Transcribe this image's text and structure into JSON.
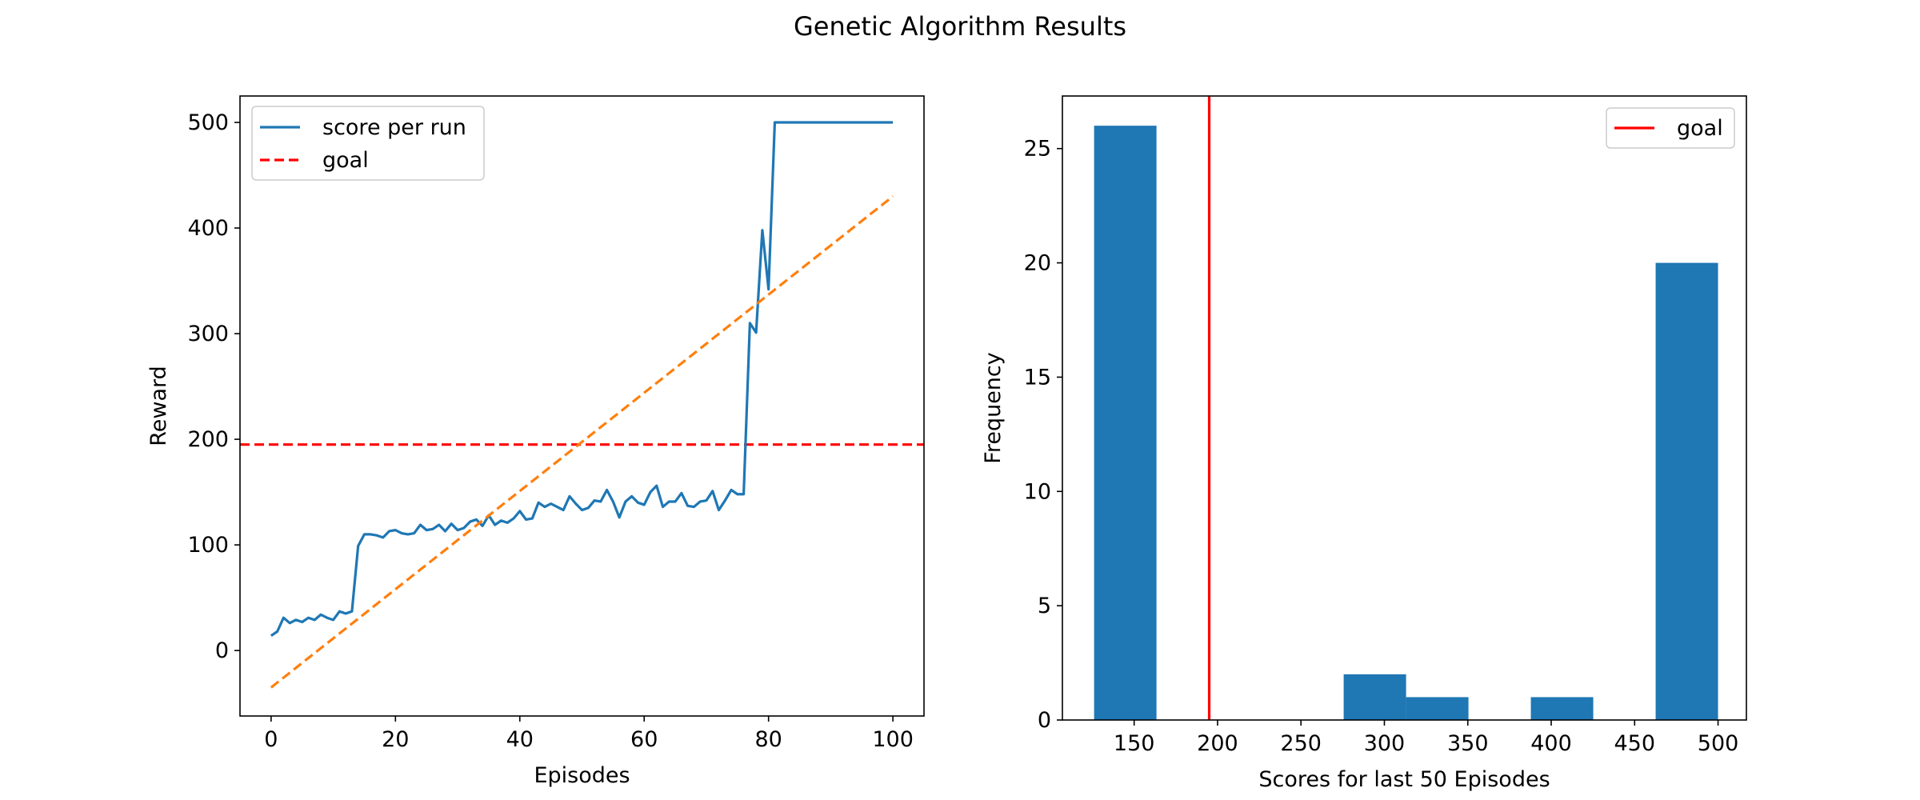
{
  "figure": {
    "title": "Genetic Algorithm Results"
  },
  "colors": {
    "score": "#1f77b4",
    "goal": "#d62728",
    "goal_line": "#ff0000",
    "trend": "#ff7f0e",
    "bar": "#1f77b4"
  },
  "chart_data": [
    {
      "type": "line",
      "xlabel": "Episodes",
      "ylabel": "Reward",
      "xlim": [
        -5,
        105
      ],
      "ylim": [
        -62,
        525
      ],
      "xticks": [
        0,
        20,
        40,
        60,
        80,
        100
      ],
      "yticks": [
        0,
        100,
        200,
        300,
        400,
        500
      ],
      "grid": false,
      "legend_position": "upper-left",
      "legend": [
        "score per run",
        "goal"
      ],
      "series": [
        {
          "name": "score per run",
          "style": "solid",
          "x": [
            0,
            1,
            2,
            3,
            4,
            5,
            6,
            7,
            8,
            9,
            10,
            11,
            12,
            13,
            14,
            15,
            16,
            17,
            18,
            19,
            20,
            21,
            22,
            23,
            24,
            25,
            26,
            27,
            28,
            29,
            30,
            31,
            32,
            33,
            34,
            35,
            36,
            37,
            38,
            39,
            40,
            41,
            42,
            43,
            44,
            45,
            46,
            47,
            48,
            49,
            50,
            51,
            52,
            53,
            54,
            55,
            56,
            57,
            58,
            59,
            60,
            61,
            62,
            63,
            64,
            65,
            66,
            67,
            68,
            69,
            70,
            71,
            72,
            73,
            74,
            75,
            76,
            77,
            78,
            79,
            80,
            81,
            82,
            83,
            84,
            85,
            86,
            87,
            88,
            89,
            90,
            91,
            92,
            93,
            94,
            95,
            96,
            97,
            98,
            99,
            100
          ],
          "y": [
            14,
            18,
            31,
            26,
            29,
            27,
            31,
            29,
            34,
            31,
            29,
            37,
            35,
            37,
            99,
            110,
            110,
            109,
            107,
            113,
            114,
            111,
            110,
            111,
            119,
            114,
            115,
            119,
            113,
            120,
            114,
            116,
            122,
            124,
            118,
            128,
            119,
            123,
            121,
            125,
            132,
            124,
            125,
            140,
            136,
            139,
            136,
            133,
            146,
            139,
            133,
            135,
            142,
            141,
            152,
            141,
            126,
            141,
            146,
            140,
            138,
            150,
            156,
            136,
            141,
            141,
            149,
            137,
            136,
            141,
            142,
            151,
            133,
            142,
            152,
            148,
            148,
            310,
            301,
            398,
            342,
            500,
            500,
            500,
            500,
            500,
            500,
            500,
            500,
            500,
            500,
            500,
            500,
            500,
            500,
            500,
            500,
            500,
            500,
            500,
            500
          ]
        },
        {
          "name": "",
          "style": "dashed",
          "x": [
            0,
            100
          ],
          "y": [
            -35,
            430
          ]
        }
      ],
      "hlines": [
        {
          "name": "goal",
          "y": 195,
          "style": "dashed"
        }
      ]
    },
    {
      "type": "bar",
      "xlabel": "Scores for last 50 Episodes",
      "ylabel": "Frequency",
      "xlim": [
        107,
        517
      ],
      "ylim": [
        0,
        27.3
      ],
      "xticks": [
        150,
        200,
        250,
        300,
        350,
        400,
        450,
        500
      ],
      "yticks": [
        0,
        5,
        10,
        15,
        20,
        25
      ],
      "grid": false,
      "legend_position": "upper-right",
      "legend": [
        "goal"
      ],
      "bins": [
        {
          "start": 126,
          "end": 163.4,
          "count": 26
        },
        {
          "start": 163.4,
          "end": 200.8,
          "count": 0
        },
        {
          "start": 200.8,
          "end": 238.2,
          "count": 0
        },
        {
          "start": 238.2,
          "end": 275.6,
          "count": 0
        },
        {
          "start": 275.6,
          "end": 313,
          "count": 2
        },
        {
          "start": 313,
          "end": 350.4,
          "count": 1
        },
        {
          "start": 350.4,
          "end": 387.8,
          "count": 0
        },
        {
          "start": 387.8,
          "end": 425.2,
          "count": 1
        },
        {
          "start": 425.2,
          "end": 462.6,
          "count": 0
        },
        {
          "start": 462.6,
          "end": 500,
          "count": 20
        }
      ],
      "vlines": [
        {
          "name": "goal",
          "x": 195,
          "style": "solid"
        }
      ]
    }
  ]
}
